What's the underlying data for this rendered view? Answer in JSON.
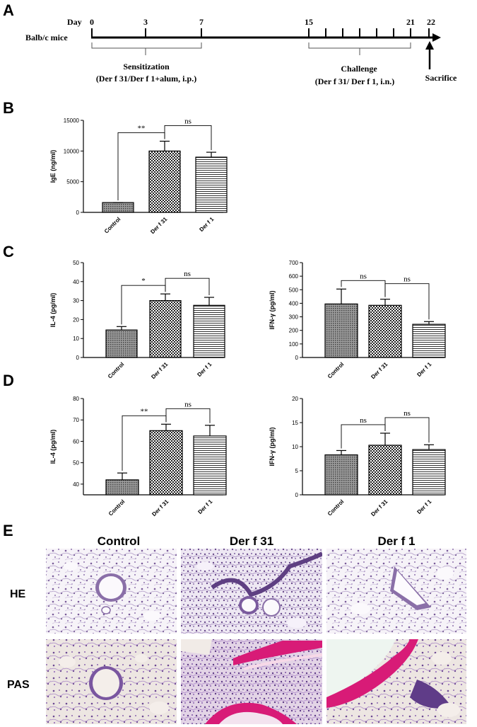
{
  "panels": {
    "A": {
      "letter": "A",
      "day_label": "Day",
      "mice_label": "Balb/c mice",
      "days": [
        "0",
        "3",
        "7",
        "15",
        "21",
        "22"
      ],
      "sensitization_title": "Sensitization",
      "sensitization_detail": "(Der f 31/Der f 1+alum, i.p.)",
      "challenge_title": "Challenge",
      "challenge_detail": "(Der f 31/ Der f 1, i.n.)",
      "sacrifice": "Sacrifice"
    },
    "B": {
      "letter": "B"
    },
    "C": {
      "letter": "C"
    },
    "D": {
      "letter": "D"
    },
    "E": {
      "letter": "E",
      "columns": [
        "Control",
        "Der f 31",
        "Der f 1"
      ],
      "rows": [
        "HE",
        "PAS"
      ]
    }
  },
  "chart_data": [
    {
      "id": "B",
      "type": "bar",
      "ylabel": "IgE (ng/ml)",
      "ylim": [
        0,
        15000
      ],
      "yticks": [
        0,
        5000,
        10000,
        15000
      ],
      "categories": [
        "Control",
        "Der f 31",
        "Der f 1"
      ],
      "values": [
        1600,
        10000,
        9000
      ],
      "errors": [
        0,
        1600,
        800
      ],
      "significance": [
        {
          "from": 0,
          "to": 1,
          "label": "**"
        },
        {
          "from": 1,
          "to": 2,
          "label": "ns"
        }
      ]
    },
    {
      "id": "C-left",
      "type": "bar",
      "ylabel": "IL-4 (pg/ml)",
      "ylim": [
        0,
        50
      ],
      "yticks": [
        0,
        10,
        20,
        30,
        40,
        50
      ],
      "categories": [
        "Control",
        "Der f 31",
        "Der f 1"
      ],
      "values": [
        14.5,
        30,
        27.5
      ],
      "errors": [
        1.8,
        3.5,
        4.2
      ],
      "significance": [
        {
          "from": 0,
          "to": 1,
          "label": "*"
        },
        {
          "from": 1,
          "to": 2,
          "label": "ns"
        }
      ]
    },
    {
      "id": "C-right",
      "type": "bar",
      "ylabel": "IFN-γ (pg/ml)",
      "ylim": [
        0,
        700
      ],
      "yticks": [
        0,
        100,
        200,
        300,
        400,
        500,
        600,
        700
      ],
      "categories": [
        "Control",
        "Der f 31",
        "Der f 1"
      ],
      "values": [
        395,
        385,
        245
      ],
      "errors": [
        110,
        45,
        20
      ],
      "significance": [
        {
          "from": 0,
          "to": 1,
          "label": "ns"
        },
        {
          "from": 1,
          "to": 2,
          "label": "ns"
        }
      ]
    },
    {
      "id": "D-left",
      "type": "bar",
      "ylabel": "IL-4 (pg/ml)",
      "ylim": [
        35,
        80
      ],
      "yticks": [
        40,
        50,
        60,
        70,
        80
      ],
      "categories": [
        "Control",
        "Der f 31",
        "Der f 1"
      ],
      "values": [
        42,
        65,
        62.5
      ],
      "errors": [
        3.2,
        3,
        5
      ],
      "significance": [
        {
          "from": 0,
          "to": 1,
          "label": "**"
        },
        {
          "from": 1,
          "to": 2,
          "label": "ns"
        }
      ]
    },
    {
      "id": "D-right",
      "type": "bar",
      "ylabel": "IFN-γ (pg/ml)",
      "ylim": [
        0,
        20
      ],
      "yticks": [
        0,
        5,
        10,
        15,
        20
      ],
      "categories": [
        "Control",
        "Der f 31",
        "Der f 1"
      ],
      "values": [
        8.3,
        10.3,
        9.4
      ],
      "errors": [
        0.9,
        2.5,
        1
      ],
      "significance": [
        {
          "from": 0,
          "to": 1,
          "label": "ns"
        },
        {
          "from": 1,
          "to": 2,
          "label": "ns"
        }
      ]
    }
  ],
  "colors": {
    "he_tissue": "#9a7fb5",
    "he_background": "#f6f3f8",
    "pas_tissue": "#8a5aa5",
    "pas_mucus": "#d81b77",
    "pas_background": "#ede6e2"
  }
}
